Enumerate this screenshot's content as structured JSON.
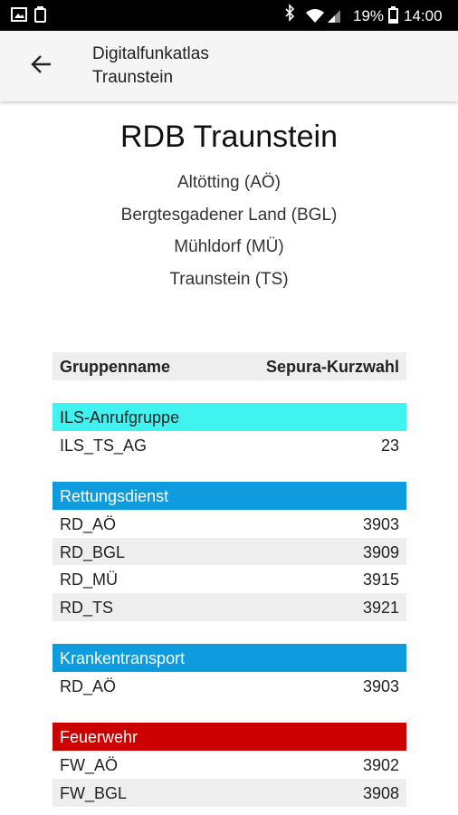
{
  "status_bar": {
    "battery": "19%",
    "time": "14:00"
  },
  "app_bar": {
    "title_lines": [
      "Digitalfunkatlas",
      "Traunstein"
    ]
  },
  "heading": "RDB Traunstein",
  "districts": [
    "Altötting (AÖ)",
    "Bergtesgadener Land (BGL)",
    "Mühldorf (MÜ)",
    "Traunstein (TS)"
  ],
  "table": {
    "columns": [
      "Gruppenname",
      "Sepura-Kurzwahl"
    ],
    "groups": [
      {
        "name": "ILS-Anrufgruppe",
        "color": "#40f2f0",
        "rows": [
          [
            "ILS_TS_AG",
            "23"
          ]
        ]
      },
      {
        "name": "Rettungsdienst",
        "color": "#0f9cdf",
        "rows": [
          [
            "RD_AÖ",
            "3903"
          ],
          [
            "RD_BGL",
            "3909"
          ],
          [
            "RD_MÜ",
            "3915"
          ],
          [
            "RD_TS",
            "3921"
          ]
        ]
      },
      {
        "name": "Krankentransport",
        "color": "#0f9cdf",
        "rows": [
          [
            "RD_AÖ",
            "3903"
          ]
        ]
      },
      {
        "name": "Feuerwehr",
        "color": "#cc0000",
        "rows": [
          [
            "FW_AÖ",
            "3902"
          ],
          [
            "FW_BGL",
            "3908"
          ]
        ]
      }
    ]
  }
}
